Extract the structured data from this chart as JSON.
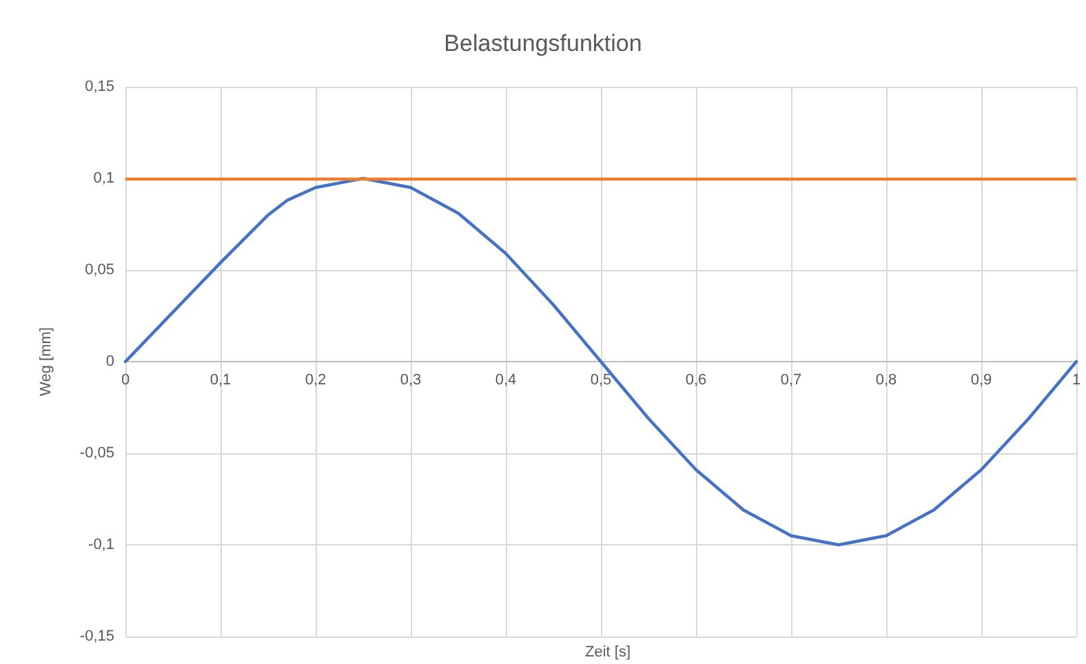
{
  "chart_data": {
    "type": "line",
    "title": "Belastungsfunktion",
    "xlabel": "Zeit [s]",
    "ylabel": "Weg [mm]",
    "x": [
      0,
      0.05,
      0.1,
      0.15,
      0.17,
      0.2,
      0.25,
      0.3,
      0.35,
      0.4,
      0.45,
      0.5,
      0.55,
      0.6,
      0.65,
      0.7,
      0.75,
      0.8,
      0.85,
      0.9,
      0.95,
      1
    ],
    "series": [
      {
        "color": "#4472c4",
        "values": [
          0,
          0.027,
          0.054,
          0.08,
          0.088,
          0.095,
          0.1,
          0.095,
          0.081,
          0.059,
          0.031,
          0,
          -0.031,
          -0.059,
          -0.081,
          -0.095,
          -0.1,
          -0.095,
          -0.081,
          -0.059,
          -0.031,
          0
        ]
      }
    ],
    "ref_lines": [
      {
        "axis": "y",
        "value": 0.1,
        "color": "#ed7d31",
        "line_style": "solid"
      }
    ],
    "xlim": [
      0,
      1
    ],
    "xticks": [
      0,
      {
        "value": 0.1,
        "label": "0,1"
      },
      {
        "value": 0.2,
        "label": "0,2"
      },
      {
        "value": 0.3,
        "label": "0,3"
      },
      {
        "value": 0.4,
        "label": "0,4"
      },
      {
        "value": 0.5,
        "label": "0,5"
      },
      {
        "value": 0.6,
        "label": "0,6"
      },
      {
        "value": 0.7,
        "label": "0,7"
      },
      {
        "value": 0.8,
        "label": "0,8"
      },
      {
        "value": 0.9,
        "label": "0,9"
      },
      1
    ],
    "ylim": [
      -0.15,
      0.15
    ],
    "yticks": [
      {
        "value": -0.15,
        "label": "-0,15"
      },
      {
        "value": -0.1,
        "label": "-0,1"
      },
      {
        "value": -0.05,
        "label": "-0,05"
      },
      0,
      {
        "value": 0.05,
        "label": "0,05"
      },
      {
        "value": 0.1,
        "label": "0,1"
      },
      {
        "value": 0.15,
        "label": "0,15"
      }
    ],
    "grid": true,
    "marker": "none",
    "line_style": "solid"
  }
}
